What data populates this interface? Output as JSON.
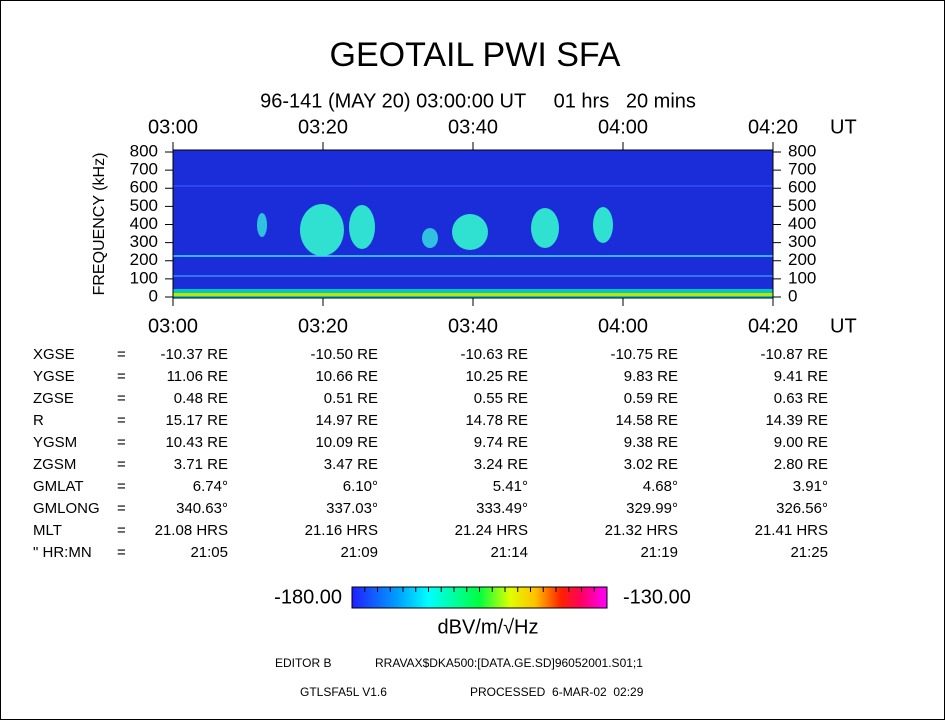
{
  "title": "GEOTAIL PWI SFA",
  "subtitle": "96-141 (MAY 20) 03:00:00 UT     01 hrs   20 mins",
  "time_axis": {
    "labels": [
      "03:00",
      "03:20",
      "03:40",
      "04:00",
      "04:20"
    ],
    "unit": "UT"
  },
  "freq_axis": {
    "title": "FREQUENCY (kHz)",
    "labels": [
      "800",
      "700",
      "600",
      "500",
      "400",
      "300",
      "200",
      "100",
      "0"
    ]
  },
  "table": {
    "rows": [
      [
        "XGSE",
        "=",
        "-10.37 RE",
        "-10.50 RE",
        "-10.63 RE",
        "-10.75 RE",
        "-10.87 RE"
      ],
      [
        "YGSE",
        "=",
        "11.06 RE",
        "10.66 RE",
        "10.25 RE",
        "9.83 RE",
        "9.41 RE"
      ],
      [
        "ZGSE",
        "=",
        "0.48 RE",
        "0.51 RE",
        "0.55 RE",
        "0.59 RE",
        "0.63 RE"
      ],
      [
        "R",
        "=",
        "15.17 RE",
        "14.97 RE",
        "14.78 RE",
        "14.58 RE",
        "14.39 RE"
      ],
      [
        "YGSM",
        "=",
        "10.43 RE",
        "10.09 RE",
        "9.74 RE",
        "9.38 RE",
        "9.00 RE"
      ],
      [
        "ZGSM",
        "=",
        "3.71 RE",
        "3.47 RE",
        "3.24 RE",
        "3.02 RE",
        "2.80 RE"
      ],
      [
        "GMLAT",
        "=",
        "6.74°",
        "6.10°",
        "5.41°",
        "4.68°",
        "3.91°"
      ],
      [
        "GMLONG",
        "=",
        "340.63°",
        "337.03°",
        "333.49°",
        "329.99°",
        "326.56°"
      ],
      [
        "MLT",
        "=",
        "21.08 HRS",
        "21.16 HRS",
        "21.24 HRS",
        "21.32 HRS",
        "21.41 HRS"
      ],
      [
        "\" HR:MN",
        "=",
        "21:05",
        "21:09",
        "21:14",
        "21:19",
        "21:25"
      ]
    ]
  },
  "colorbar": {
    "min_label": "-180.00",
    "max_label": "-130.00",
    "unit": "dBV/m/√Hz"
  },
  "footer": {
    "editor": "EDITOR B",
    "file": "RRAVAX$DKA500:[DATA.GE.SD]96052001.S01;1",
    "version": "GTLSFA5L V1.6",
    "processed": "PROCESSED  6-MAR-02  02:29"
  }
}
